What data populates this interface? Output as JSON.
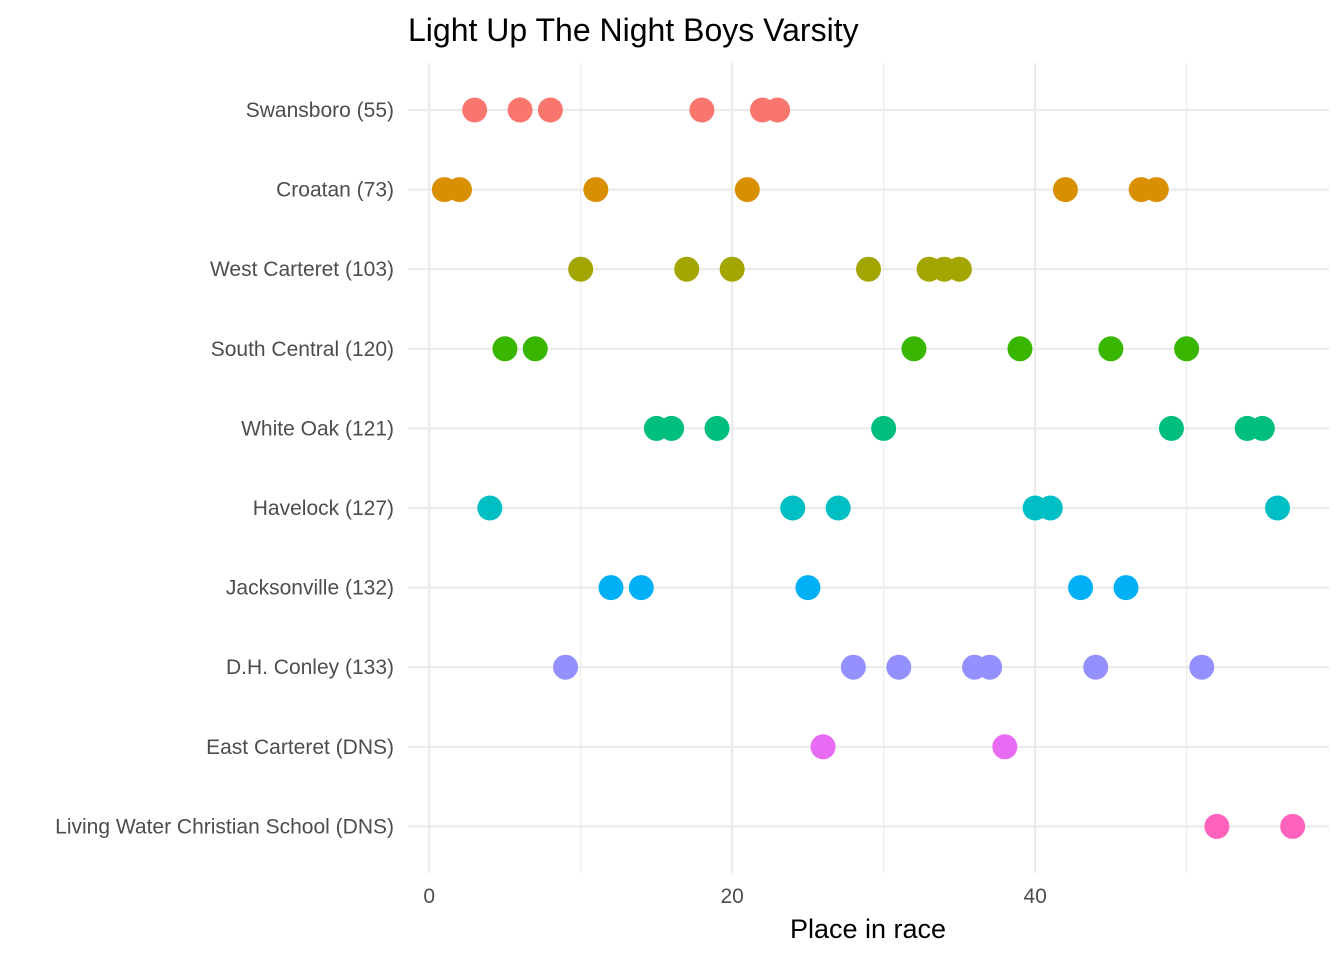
{
  "chart_data": {
    "type": "scatter",
    "title": "Light Up The Night Boys Varsity",
    "xlabel": "Place in race",
    "ylabel": "",
    "xlim": [
      -1.4,
      59.4
    ],
    "x_ticks": [
      0,
      20,
      40
    ],
    "x_minor_ticks": [
      10,
      30,
      50
    ],
    "grid": true,
    "legend": "none",
    "categories": [
      "Swansboro (55)",
      "Croatan (73)",
      "West Carteret (103)",
      "South Central (120)",
      "White Oak (121)",
      "Havelock (127)",
      "Jacksonville (132)",
      "D.H. Conley (133)",
      "East Carteret (DNS)",
      "Living Water Christian School (DNS)"
    ],
    "series": [
      {
        "color": "#F8766D",
        "values": [
          3,
          6,
          8,
          18,
          22,
          23
        ]
      },
      {
        "color": "#D89000",
        "values": [
          1,
          2,
          11,
          21,
          42,
          47,
          48
        ]
      },
      {
        "color": "#A3A500",
        "values": [
          10,
          17,
          20,
          29,
          33,
          34,
          35
        ]
      },
      {
        "color": "#39B600",
        "values": [
          5,
          7,
          32,
          39,
          45,
          50
        ]
      },
      {
        "color": "#00BF7D",
        "values": [
          15,
          16,
          19,
          30,
          49,
          54,
          55
        ]
      },
      {
        "color": "#00BFC4",
        "values": [
          4,
          24,
          27,
          40,
          41,
          56
        ]
      },
      {
        "color": "#00B0F6",
        "values": [
          12,
          14,
          25,
          43,
          46
        ]
      },
      {
        "color": "#9590FF",
        "values": [
          9,
          28,
          31,
          36,
          37,
          44,
          51
        ]
      },
      {
        "color": "#E76BF3",
        "values": [
          26,
          38
        ]
      },
      {
        "color": "#FF62BC",
        "values": [
          52,
          57
        ]
      }
    ]
  }
}
